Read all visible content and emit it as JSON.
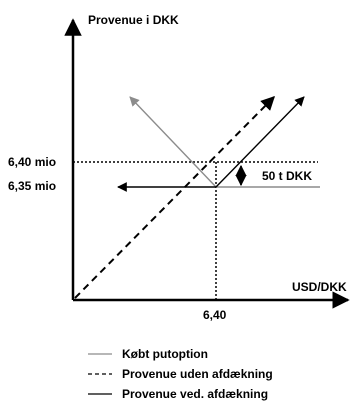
{
  "axes": {
    "y_label": "Provenue i DKK",
    "x_label": "USD/DKK"
  },
  "labels": {
    "y_tick_upper": "6,40 mio",
    "y_tick_lower": "6,35 mio",
    "x_tick": "6,40",
    "gap": "50 t DKK"
  },
  "legend": [
    {
      "style": "solid-gray",
      "label": "Købt putoption"
    },
    {
      "style": "dashed-black",
      "label": "Provenue uden afdækning"
    },
    {
      "style": "solid-black",
      "label": "Provenue ved. afdækning"
    }
  ],
  "colors": {
    "axis": "#000000",
    "putoption": "#8c8c8c",
    "unhedged": "#000000",
    "hedged": "#000000"
  }
}
